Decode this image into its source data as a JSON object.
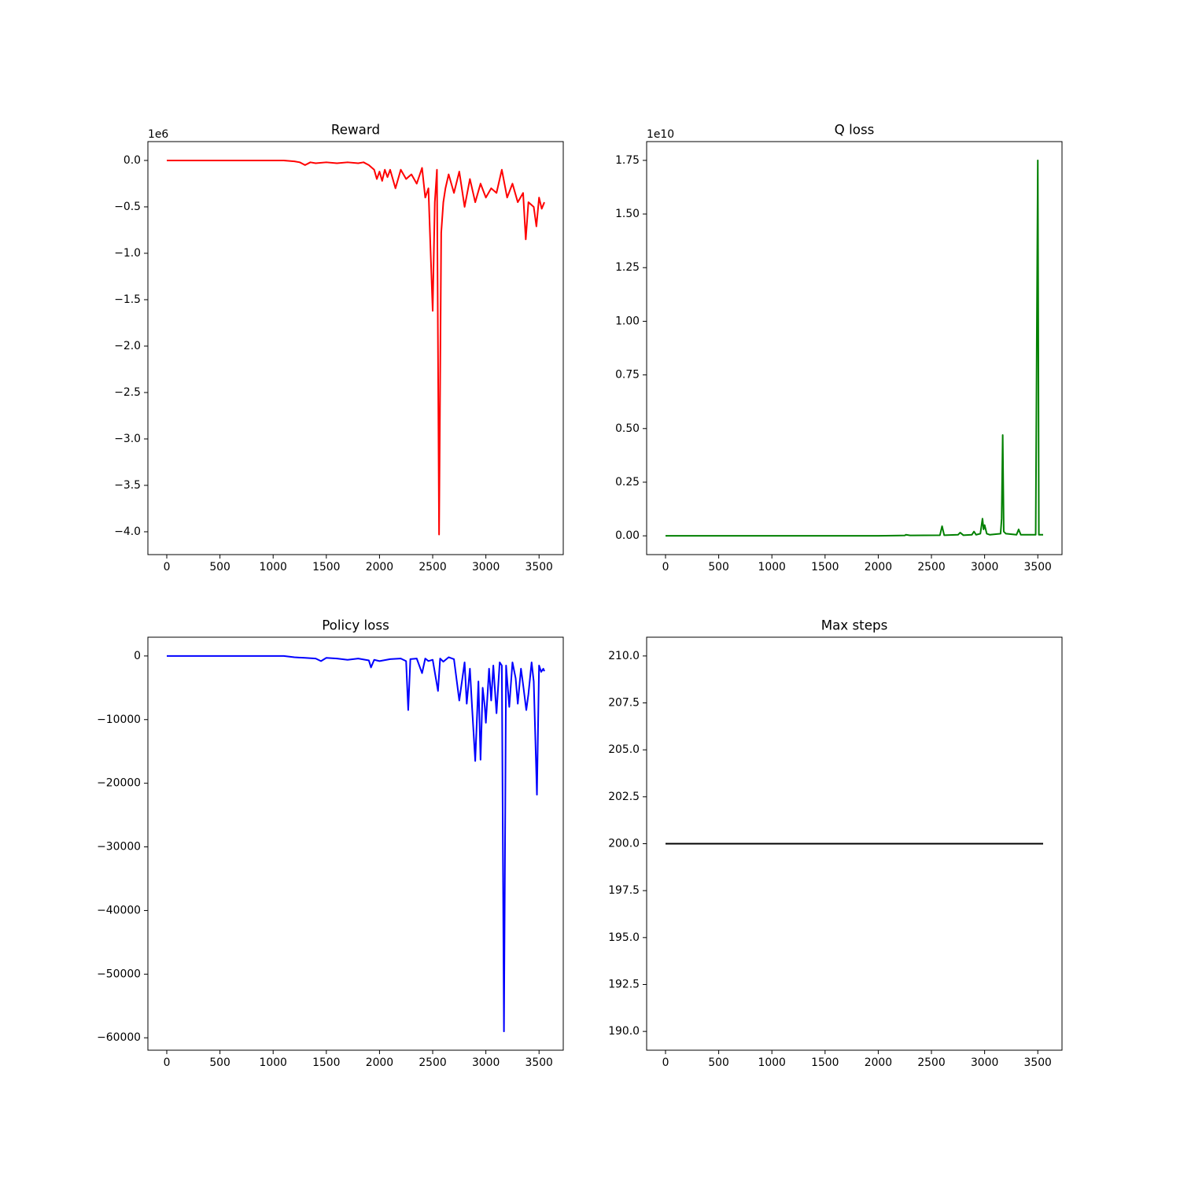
{
  "chart_data": [
    {
      "type": "line",
      "title": "Reward",
      "offset_label": "1e6",
      "color": "#ff0000",
      "x": [
        0,
        200,
        400,
        600,
        800,
        1000,
        1100,
        1200,
        1250,
        1300,
        1350,
        1400,
        1500,
        1600,
        1700,
        1800,
        1850,
        1900,
        1950,
        1975,
        2000,
        2025,
        2050,
        2075,
        2100,
        2150,
        2200,
        2250,
        2300,
        2350,
        2400,
        2430,
        2460,
        2480,
        2500,
        2520,
        2540,
        2560,
        2580,
        2600,
        2620,
        2650,
        2700,
        2750,
        2800,
        2850,
        2900,
        2950,
        3000,
        3050,
        3100,
        3150,
        3200,
        3250,
        3300,
        3350,
        3375,
        3400,
        3450,
        3475,
        3500,
        3525,
        3550
      ],
      "values": [
        0,
        0,
        0,
        0,
        0,
        0,
        0,
        -0.01,
        -0.02,
        -0.05,
        -0.02,
        -0.03,
        -0.02,
        -0.03,
        -0.02,
        -0.03,
        -0.02,
        -0.05,
        -0.1,
        -0.2,
        -0.12,
        -0.22,
        -0.1,
        -0.18,
        -0.1,
        -0.3,
        -0.1,
        -0.2,
        -0.15,
        -0.25,
        -0.08,
        -0.4,
        -0.3,
        -0.97,
        -1.62,
        -0.45,
        -0.1,
        -4.03,
        -0.78,
        -0.45,
        -0.3,
        -0.15,
        -0.35,
        -0.12,
        -0.5,
        -0.2,
        -0.45,
        -0.25,
        -0.4,
        -0.3,
        -0.35,
        -0.1,
        -0.4,
        -0.25,
        -0.45,
        -0.35,
        -0.85,
        -0.45,
        -0.5,
        -0.71,
        -0.4,
        -0.52,
        -0.45
      ],
      "xlim": [
        -177.5,
        3727.5
      ],
      "xticks": [
        0,
        500,
        1000,
        1500,
        2000,
        2500,
        3000,
        3500
      ],
      "ylim": [
        -4.246,
        0.203
      ],
      "yticks": [
        {
          "value": 0,
          "label": "0.0"
        },
        {
          "value": -0.5,
          "label": "−0.5"
        },
        {
          "value": -1,
          "label": "−1.0"
        },
        {
          "value": -1.5,
          "label": "−1.5"
        },
        {
          "value": -2,
          "label": "−2.0"
        },
        {
          "value": -2.5,
          "label": "−2.5"
        },
        {
          "value": -3,
          "label": "−3.0"
        },
        {
          "value": -3.5,
          "label": "−3.5"
        },
        {
          "value": -4,
          "label": "−4.0"
        }
      ]
    },
    {
      "type": "line",
      "title": "Q loss",
      "offset_label": "1e10",
      "color": "#008000",
      "x": [
        0,
        2000,
        2250,
        2260,
        2300,
        2580,
        2600,
        2620,
        2750,
        2770,
        2800,
        2880,
        2900,
        2920,
        2960,
        2980,
        2990,
        3000,
        3020,
        3050,
        3150,
        3160,
        3170,
        3180,
        3200,
        3300,
        3320,
        3340,
        3480,
        3500,
        3510,
        3550
      ],
      "values": [
        0,
        0,
        0.002,
        0.005,
        0.002,
        0.003,
        0.045,
        0.003,
        0.005,
        0.015,
        0.003,
        0.005,
        0.02,
        0.005,
        0.01,
        0.08,
        0.03,
        0.05,
        0.01,
        0.005,
        0.01,
        0.08,
        0.47,
        0.02,
        0.01,
        0.005,
        0.03,
        0.005,
        0.005,
        1.75,
        0.005,
        0.005
      ],
      "xlim": [
        -177.5,
        3727.5
      ],
      "xticks": [
        0,
        500,
        1000,
        1500,
        2000,
        2500,
        3000,
        3500
      ],
      "ylim": [
        -0.0875,
        1.8375
      ],
      "yticks": [
        {
          "value": 0,
          "label": "0.00"
        },
        {
          "value": 0.25,
          "label": "0.25"
        },
        {
          "value": 0.5,
          "label": "0.50"
        },
        {
          "value": 0.75,
          "label": "0.75"
        },
        {
          "value": 1,
          "label": "1.00"
        },
        {
          "value": 1.25,
          "label": "1.25"
        },
        {
          "value": 1.5,
          "label": "1.50"
        },
        {
          "value": 1.75,
          "label": "1.75"
        }
      ]
    },
    {
      "type": "line",
      "title": "Policy loss",
      "color": "#0000ff",
      "x": [
        0,
        600,
        1100,
        1200,
        1300,
        1400,
        1450,
        1500,
        1600,
        1700,
        1800,
        1900,
        1920,
        1950,
        2000,
        2100,
        2200,
        2250,
        2270,
        2290,
        2350,
        2400,
        2430,
        2460,
        2500,
        2550,
        2570,
        2600,
        2650,
        2700,
        2750,
        2800,
        2820,
        2850,
        2870,
        2900,
        2930,
        2950,
        2970,
        2990,
        3000,
        3030,
        3050,
        3070,
        3100,
        3130,
        3150,
        3170,
        3190,
        3220,
        3250,
        3280,
        3300,
        3330,
        3350,
        3380,
        3400,
        3430,
        3450,
        3480,
        3500,
        3520,
        3540,
        3550
      ],
      "values": [
        0,
        0,
        0,
        -200,
        -300,
        -400,
        -800,
        -300,
        -400,
        -600,
        -400,
        -700,
        -1800,
        -600,
        -800,
        -500,
        -400,
        -800,
        -8500,
        -500,
        -400,
        -2700,
        -400,
        -800,
        -600,
        -5500,
        -400,
        -900,
        -200,
        -500,
        -7000,
        -1000,
        -7500,
        -2000,
        -8000,
        -16500,
        -4000,
        -16300,
        -5000,
        -8000,
        -10500,
        -2000,
        -7000,
        -1500,
        -9000,
        -1000,
        -1500,
        -59000,
        -1500,
        -8000,
        -1000,
        -3500,
        -7500,
        -2000,
        -4500,
        -8500,
        -6000,
        -1000,
        -4000,
        -21800,
        -1500,
        -2500,
        -2000,
        -2400
      ],
      "xlim": [
        -177.5,
        3727.5
      ],
      "xticks": [
        0,
        500,
        1000,
        1500,
        2000,
        2500,
        3000,
        3500
      ],
      "ylim": [
        -61950,
        2950
      ],
      "yticks": [
        0,
        {
          "value": -10000,
          "label": "−10000"
        },
        {
          "value": -20000,
          "label": "−20000"
        },
        {
          "value": -30000,
          "label": "−30000"
        },
        {
          "value": -40000,
          "label": "−40000"
        },
        {
          "value": -50000,
          "label": "−50000"
        },
        {
          "value": -60000,
          "label": "−60000"
        }
      ]
    },
    {
      "type": "line",
      "title": "Max steps",
      "color": "#000000",
      "x": [
        0,
        3550
      ],
      "values": [
        200,
        200
      ],
      "xlim": [
        -177.5,
        3727.5
      ],
      "xticks": [
        0,
        500,
        1000,
        1500,
        2000,
        2500,
        3000,
        3500
      ],
      "ylim": [
        189,
        211
      ],
      "yticks": [
        {
          "value": 190,
          "label": "190.0"
        },
        {
          "value": 192.5,
          "label": "192.5"
        },
        {
          "value": 195,
          "label": "195.0"
        },
        {
          "value": 197.5,
          "label": "197.5"
        },
        {
          "value": 200,
          "label": "200.0"
        },
        {
          "value": 202.5,
          "label": "202.5"
        },
        {
          "value": 205,
          "label": "205.0"
        },
        {
          "value": 207.5,
          "label": "207.5"
        },
        {
          "value": 210,
          "label": "210.0"
        }
      ]
    }
  ]
}
